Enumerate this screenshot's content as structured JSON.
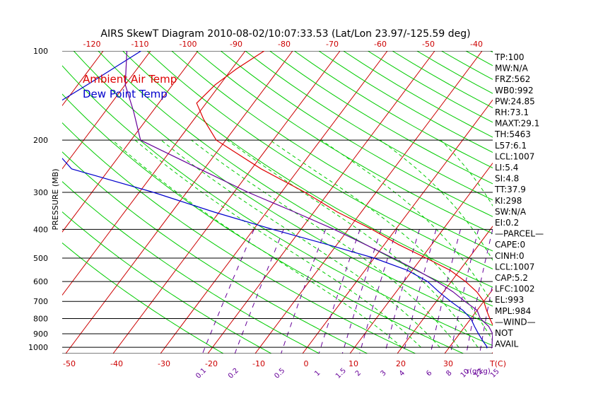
{
  "chart_data": {
    "type": "line",
    "title": "AIRS SkewT Diagram 2010-08-02/10:07:33.53 (Lat/Lon 23.97/-125.59 deg)",
    "ylabel": "PRESSURE (MB)",
    "pressure_ticks": [
      "100",
      "200",
      "300",
      "400",
      "500",
      "600",
      "700",
      "800",
      "900",
      "1000"
    ],
    "pressure_levels": [
      100,
      200,
      300,
      400,
      500,
      600,
      700,
      800,
      900,
      1000
    ],
    "top_temp_ticks": [
      "-120",
      "-110",
      "-100",
      "-90",
      "-80",
      "-70",
      "-60",
      "-50",
      "-40"
    ],
    "bottom_temp_ticks": [
      "-50",
      "-40",
      "-30",
      "-20",
      "-10",
      "0",
      "10",
      "20",
      "30"
    ],
    "bottom_temp_unit": "T(C)",
    "mixing_ratio_ticks": [
      "0.1",
      "0.2",
      "0.5",
      "1",
      "1.5",
      "2",
      "3",
      "4",
      "6",
      "8",
      "10",
      "12",
      "15",
      "20",
      "25",
      "30",
      "40"
    ],
    "mixing_ratio_unit": "r(g/kg)",
    "legend_placement": "top-left",
    "series": [
      {
        "name": "Ambient Air Temp",
        "color": "#dd0000",
        "points": [
          {
            "p": 100,
            "t": -76
          },
          {
            "p": 115,
            "t": -79
          },
          {
            "p": 130,
            "t": -81
          },
          {
            "p": 150,
            "t": -82
          },
          {
            "p": 170,
            "t": -78
          },
          {
            "p": 200,
            "t": -72
          },
          {
            "p": 250,
            "t": -58
          },
          {
            "p": 300,
            "t": -45
          },
          {
            "p": 350,
            "t": -35
          },
          {
            "p": 400,
            "t": -25
          },
          {
            "p": 450,
            "t": -17
          },
          {
            "p": 500,
            "t": -9
          },
          {
            "p": 550,
            "t": -2
          },
          {
            "p": 600,
            "t": 3
          },
          {
            "p": 650,
            "t": 7
          },
          {
            "p": 700,
            "t": 10
          },
          {
            "p": 750,
            "t": 12
          },
          {
            "p": 800,
            "t": 14
          },
          {
            "p": 850,
            "t": 16
          },
          {
            "p": 900,
            "t": 18
          },
          {
            "p": 950,
            "t": 19
          },
          {
            "p": 1000,
            "t": 20
          },
          {
            "p": 1007,
            "t": 20
          }
        ]
      },
      {
        "name": "Dew Point Temp",
        "color": "#0000cc",
        "points": [
          {
            "p": 100,
            "t": -102
          },
          {
            "p": 130,
            "t": -108
          },
          {
            "p": 160,
            "t": -113
          },
          {
            "p": 200,
            "t": -108
          },
          {
            "p": 250,
            "t": -98
          },
          {
            "p": 300,
            "t": -77
          },
          {
            "p": 350,
            "t": -61
          },
          {
            "p": 400,
            "t": -46
          },
          {
            "p": 450,
            "t": -32
          },
          {
            "p": 500,
            "t": -20
          },
          {
            "p": 550,
            "t": -11
          },
          {
            "p": 600,
            "t": -5
          },
          {
            "p": 650,
            "t": -1
          },
          {
            "p": 700,
            "t": 3
          },
          {
            "p": 750,
            "t": 7
          },
          {
            "p": 800,
            "t": 10
          },
          {
            "p": 850,
            "t": 12
          },
          {
            "p": 900,
            "t": 14
          },
          {
            "p": 950,
            "t": 16
          },
          {
            "p": 1000,
            "t": 18
          },
          {
            "p": 1007,
            "t": 18
          }
        ]
      },
      {
        "name": "Parcel",
        "color": "#660099",
        "points": [
          {
            "p": 100,
            "t": -105
          },
          {
            "p": 130,
            "t": -100
          },
          {
            "p": 160,
            "t": -94
          },
          {
            "p": 200,
            "t": -88
          },
          {
            "p": 250,
            "t": -71
          },
          {
            "p": 300,
            "t": -57
          },
          {
            "p": 350,
            "t": -44
          },
          {
            "p": 400,
            "t": -33
          },
          {
            "p": 450,
            "t": -24
          },
          {
            "p": 500,
            "t": -16
          },
          {
            "p": 550,
            "t": -9
          },
          {
            "p": 600,
            "t": -3
          },
          {
            "p": 650,
            "t": 2
          },
          {
            "p": 700,
            "t": 6
          },
          {
            "p": 750,
            "t": 10
          },
          {
            "p": 800,
            "t": 12
          },
          {
            "p": 850,
            "t": 15
          },
          {
            "p": 900,
            "t": 17
          },
          {
            "p": 950,
            "t": 18
          },
          {
            "p": 1000,
            "t": 19
          },
          {
            "p": 1007,
            "t": 19
          }
        ]
      }
    ],
    "indices": [
      "TP:100",
      "MW:N/A",
      "FRZ:562",
      "WB0:992",
      "PW:24.85",
      "RH:73.1",
      "MAXT:29.1",
      "TH:5463",
      "L57:6.1",
      "LCL:1007",
      "LI:5.4",
      "SI:4.8",
      "TT:37.9",
      "KI:298",
      "SW:N/A",
      "EI:0.2",
      "—PARCEL—",
      "CAPE:0",
      "CINH:0",
      "LCL:1007",
      "CAP:5.2",
      "LFC:1002",
      "EL:993",
      "MPL:984",
      "—WIND—",
      "NOT",
      "AVAIL"
    ],
    "colors": {
      "isotherm": "#cc0000",
      "dry_adiabat": "#00cc00",
      "moist_adiabat": "#00cc00",
      "mixing_ratio": "#660099",
      "isobar": "#000000",
      "title": "#000000",
      "axis_ticks": "#cc0000",
      "mixing_labels": "#660099"
    }
  }
}
